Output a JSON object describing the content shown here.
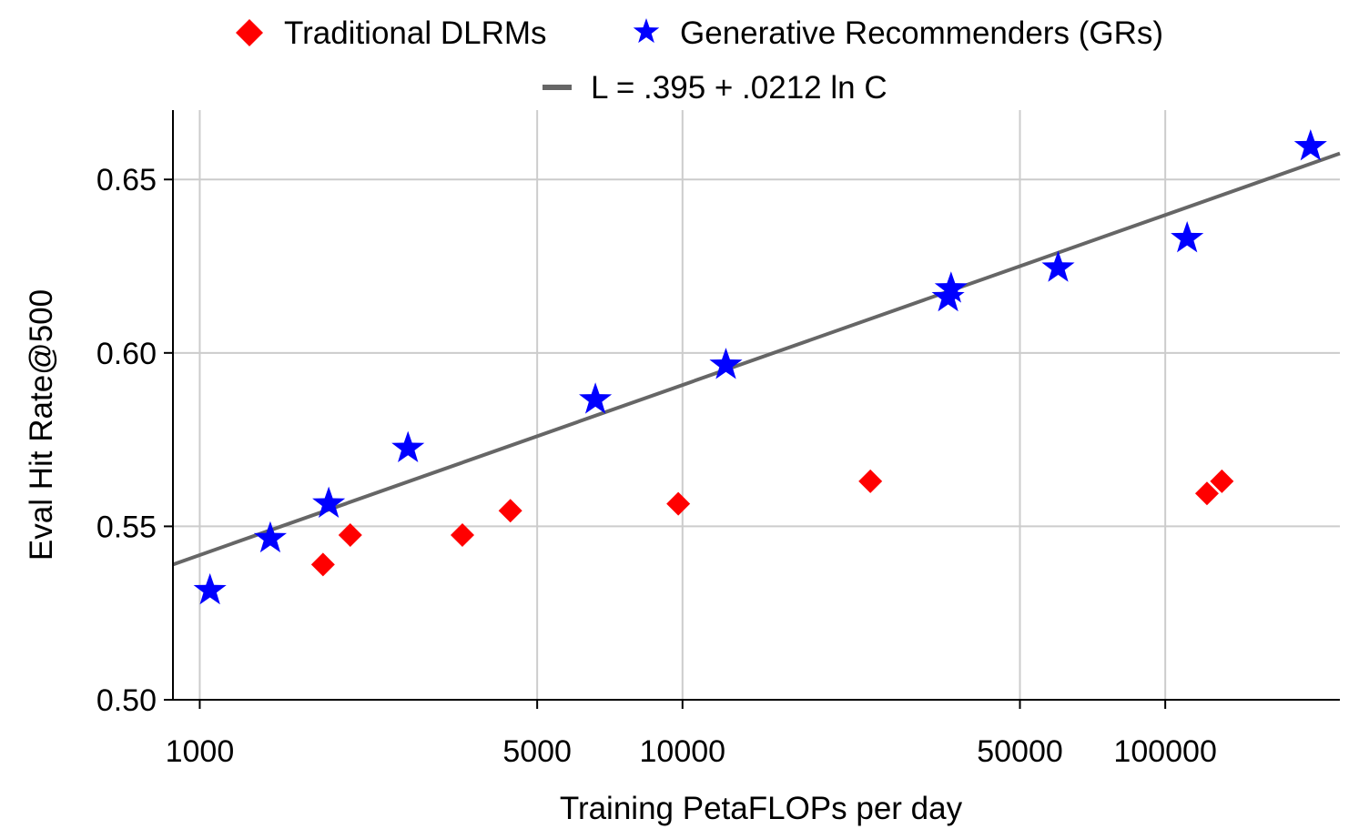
{
  "chart_data": {
    "type": "scatter",
    "xscale": "log",
    "xlabel": "Training PetaFLOPs per day",
    "ylabel": "Eval Hit Rate@500",
    "xlim": [
      880,
      230000
    ],
    "ylim": [
      0.5,
      0.67
    ],
    "xticks": [
      1000,
      5000,
      10000,
      50000,
      100000
    ],
    "xtick_labels": [
      "1000",
      "5000",
      "10000",
      "50000",
      "100000"
    ],
    "yticks": [
      0.5,
      0.55,
      0.6,
      0.65
    ],
    "ytick_labels": [
      "0.50",
      "0.55",
      "0.60",
      "0.65"
    ],
    "grid": true,
    "legend_position": "top",
    "series": [
      {
        "name": "Traditional DLRMs",
        "marker": "diamond",
        "color": "#ff0000",
        "points": [
          {
            "x": 1800,
            "y": 0.539
          },
          {
            "x": 2050,
            "y": 0.5475
          },
          {
            "x": 3500,
            "y": 0.5475
          },
          {
            "x": 4400,
            "y": 0.5545
          },
          {
            "x": 9800,
            "y": 0.5565
          },
          {
            "x": 24500,
            "y": 0.563
          },
          {
            "x": 122000,
            "y": 0.5595
          },
          {
            "x": 131000,
            "y": 0.563
          }
        ]
      },
      {
        "name": "Generative Recommenders (GRs)",
        "marker": "star",
        "color": "#0000ff",
        "points": [
          {
            "x": 1050,
            "y": 0.5315
          },
          {
            "x": 1400,
            "y": 0.5465
          },
          {
            "x": 1850,
            "y": 0.5565
          },
          {
            "x": 2700,
            "y": 0.5725
          },
          {
            "x": 6600,
            "y": 0.5865
          },
          {
            "x": 12300,
            "y": 0.5965
          },
          {
            "x": 35500,
            "y": 0.616
          },
          {
            "x": 36000,
            "y": 0.6185
          },
          {
            "x": 60000,
            "y": 0.6245
          },
          {
            "x": 111000,
            "y": 0.633
          },
          {
            "x": 200000,
            "y": 0.6595
          }
        ]
      }
    ],
    "fit_line": {
      "name": "L = .395 + .0212 ln C",
      "color": "#666666",
      "x": [
        880,
        230000
      ],
      "y": [
        0.539,
        0.6575
      ]
    }
  }
}
